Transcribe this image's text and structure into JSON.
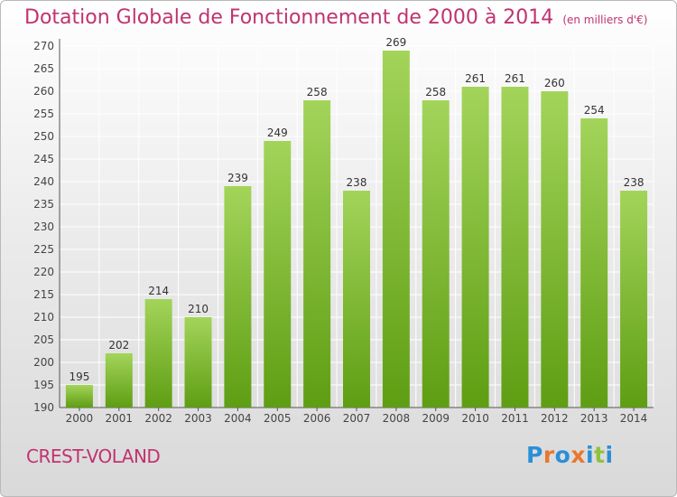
{
  "header": {
    "title": "Dotation Globale de Fonctionnement de 2000 à 2014",
    "unit": "(en milliers d'€)"
  },
  "footer": {
    "commune": "CREST-VOLAND",
    "logo_text": "Proxiti"
  },
  "colors": {
    "bar_top": "#a3d45a",
    "bar_bottom": "#5e9e13",
    "title": "#c0336f",
    "logo": [
      "#2a8fd6",
      "#e8772e",
      "#2a8fd6",
      "#e8772e",
      "#2a8fd6",
      "#8fc23c",
      "#2a8fd6"
    ]
  },
  "chart_data": {
    "type": "bar",
    "categories": [
      "2000",
      "2001",
      "2002",
      "2003",
      "2004",
      "2005",
      "2006",
      "2007",
      "2008",
      "2009",
      "2010",
      "2011",
      "2012",
      "2013",
      "2014"
    ],
    "values": [
      195,
      202,
      214,
      210,
      239,
      249,
      258,
      238,
      269,
      258,
      261,
      261,
      260,
      254,
      238
    ],
    "ylim": [
      190,
      270
    ],
    "ytick_step": 5,
    "grid": true,
    "data_labels": true
  }
}
